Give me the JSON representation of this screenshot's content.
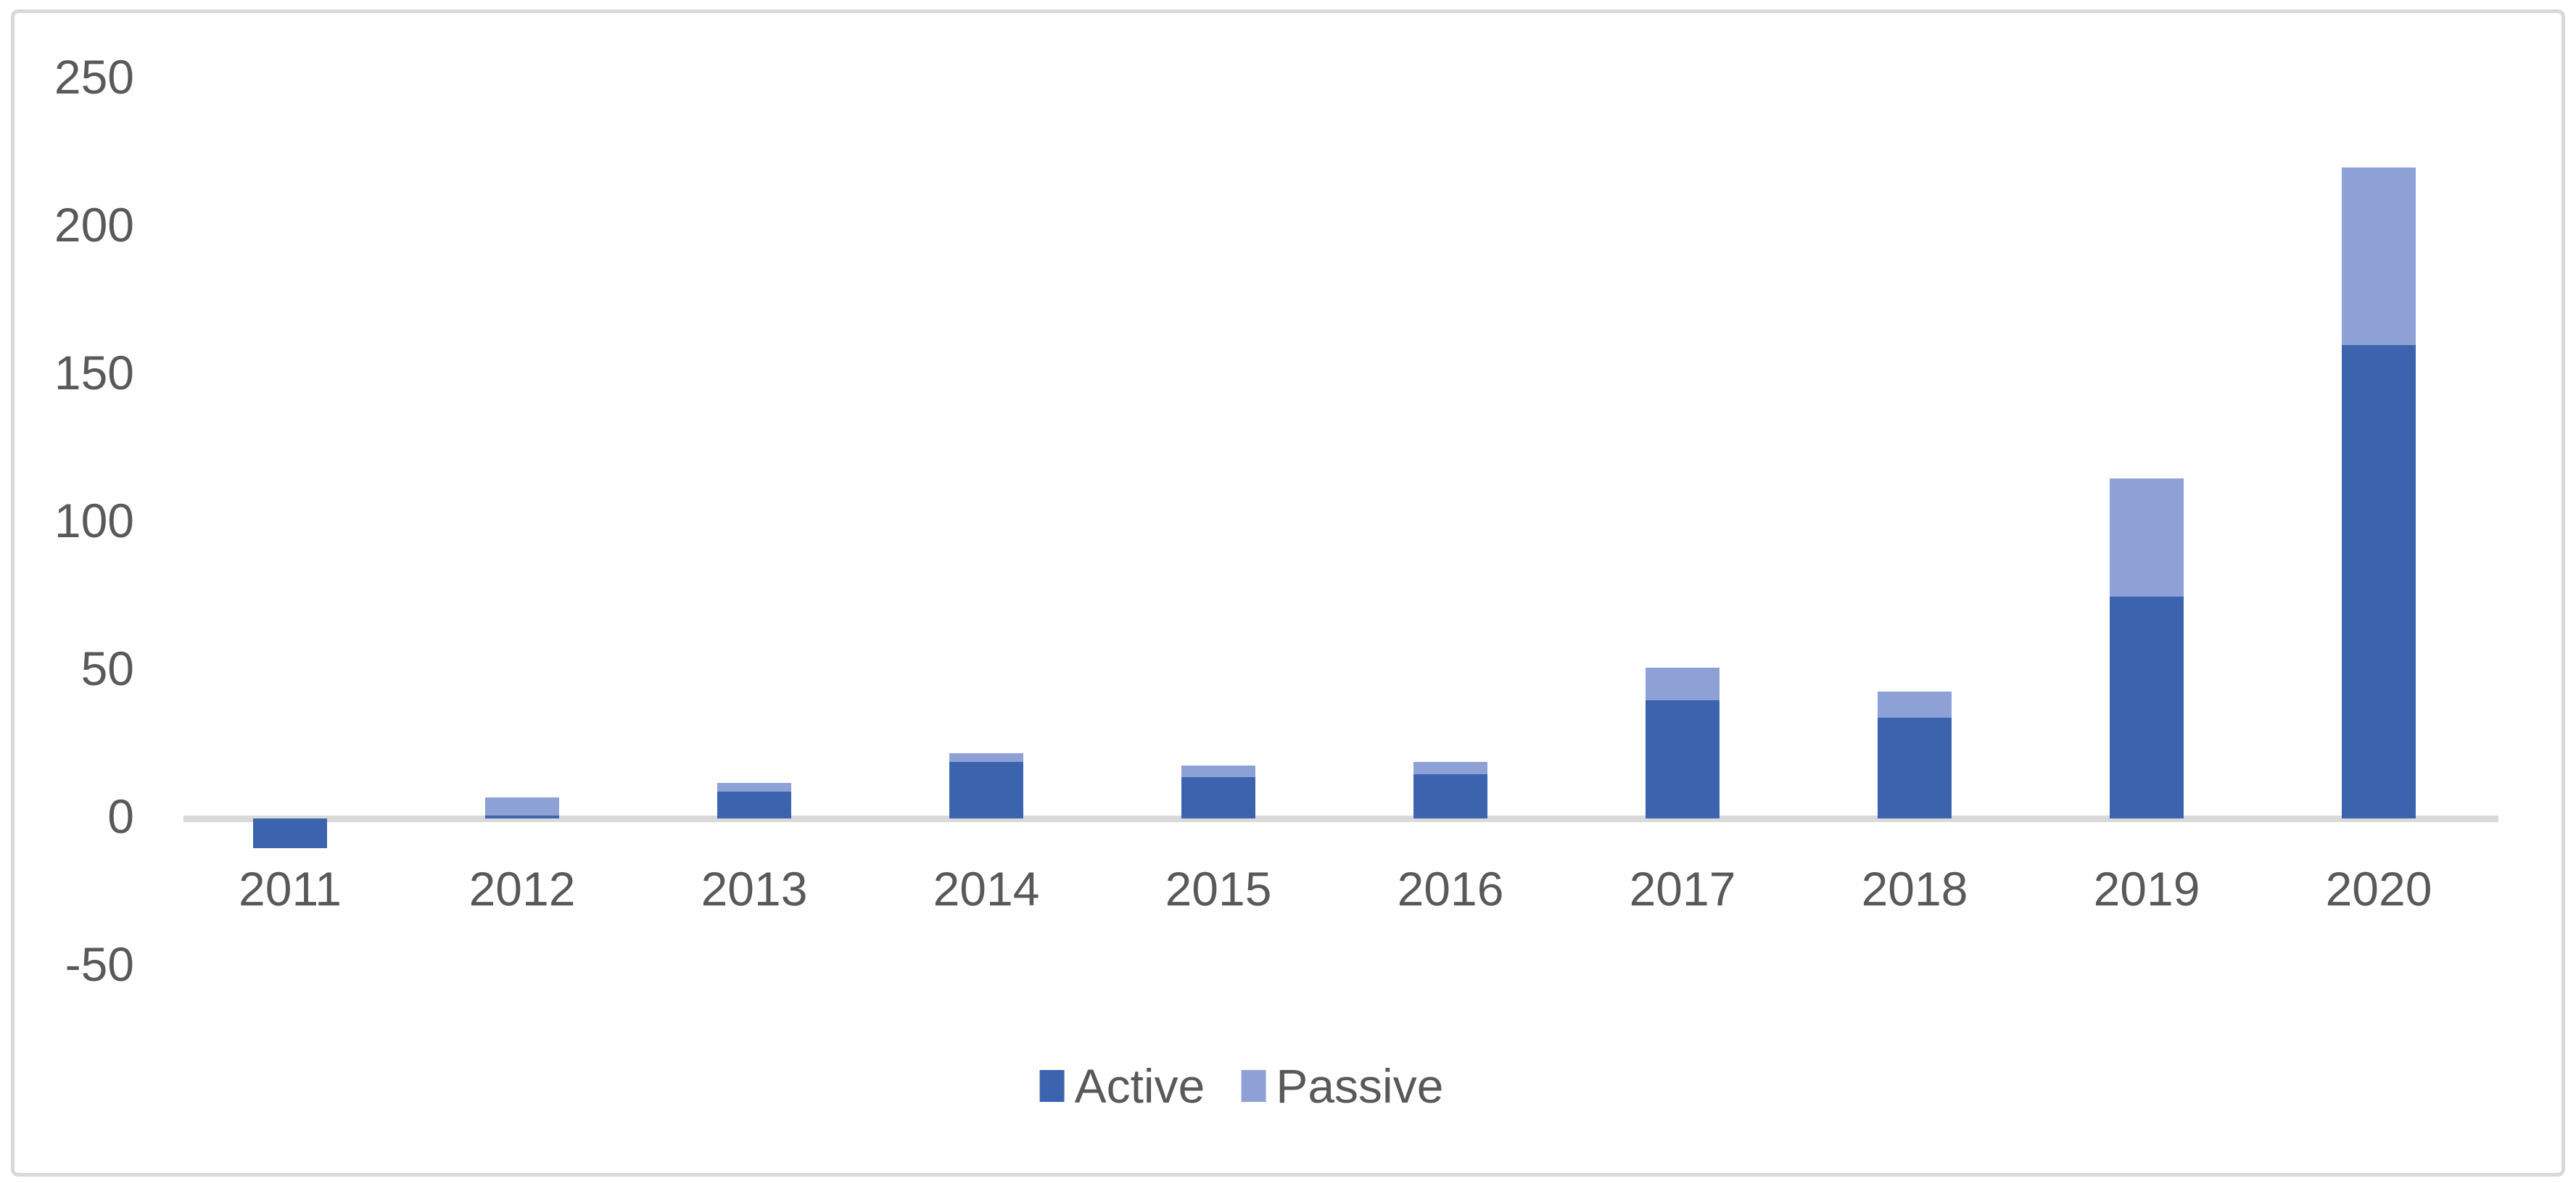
{
  "chart_data": {
    "type": "bar",
    "stacked": true,
    "title": "",
    "xlabel": "",
    "ylabel": "",
    "categories": [
      "2011",
      "2012",
      "2013",
      "2014",
      "2015",
      "2016",
      "2017",
      "2018",
      "2019",
      "2020"
    ],
    "series": [
      {
        "name": "Active",
        "color": "#3C64AE",
        "values": [
          -10,
          1,
          9,
          19,
          14,
          15,
          40,
          34,
          75,
          160
        ]
      },
      {
        "name": "Passive",
        "color": "#8EA1D6",
        "values": [
          0,
          6,
          3,
          3,
          4,
          4,
          11,
          9,
          40,
          60
        ]
      }
    ],
    "totals": [
      -10,
      7,
      12,
      22,
      18,
      19,
      51,
      43,
      115,
      220
    ],
    "ylim": [
      -50,
      250
    ],
    "yticks": [
      250,
      200,
      150,
      100,
      50,
      0,
      -50
    ],
    "grid": false,
    "legend_position": "bottom-center",
    "axis_color": "#D9D9D9",
    "frame_color": "#D9D9D9",
    "text_color": "#595959",
    "background_color": "#FFFFFF"
  }
}
